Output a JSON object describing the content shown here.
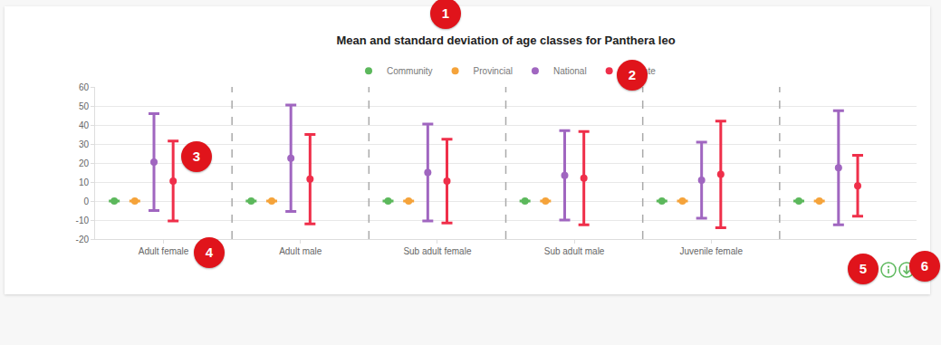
{
  "chart_data": {
    "type": "scatter",
    "title": "Mean and standard deviation of age classes for Panthera leo",
    "categories": [
      "Adult female",
      "Adult male",
      "Sub adult female",
      "Sub adult male",
      "Juvenile female",
      null
    ],
    "series": [
      {
        "name": "Community",
        "color": "#5cb85c",
        "values": [
          0,
          0,
          0,
          0,
          0,
          0
        ],
        "error": [
          0,
          0,
          0,
          0,
          0,
          0
        ]
      },
      {
        "name": "Provincial",
        "color": "#f5a33a",
        "values": [
          0,
          0,
          0,
          0,
          0,
          0
        ],
        "error": [
          0,
          0,
          0,
          0,
          0,
          0
        ]
      },
      {
        "name": "National",
        "color": "#a066c0",
        "values": [
          20.5,
          22.5,
          15,
          13.5,
          11,
          17.5
        ],
        "error": [
          25.5,
          28,
          25.5,
          23.5,
          20,
          30
        ]
      },
      {
        "name": "Private",
        "color": "#ef2f4a",
        "values": [
          10.5,
          11.5,
          10.5,
          12,
          14,
          8
        ],
        "error": [
          21,
          23.5,
          22,
          24.5,
          28,
          16
        ]
      }
    ],
    "ylim": [
      -20,
      60
    ],
    "yticks": [
      -20,
      -10,
      0,
      10,
      20,
      30,
      40,
      50,
      60
    ],
    "grid": true,
    "legend": "top",
    "marker": "circle"
  },
  "callouts": [
    "1",
    "2",
    "3",
    "4",
    "5",
    "6"
  ]
}
